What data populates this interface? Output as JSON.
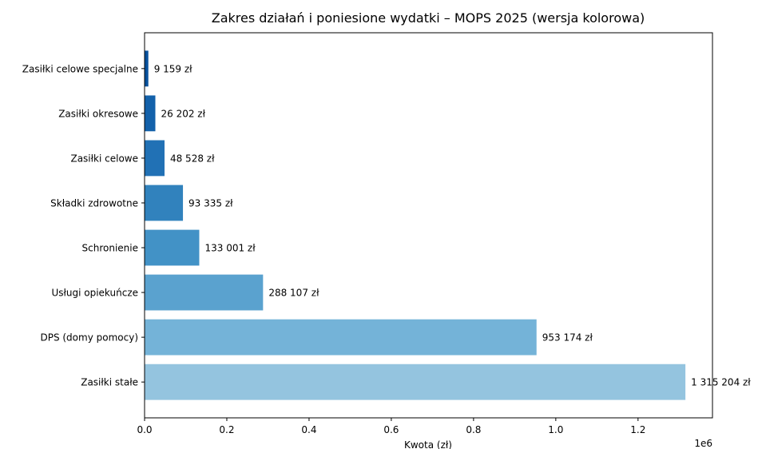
{
  "chart_data": {
    "type": "bar",
    "orientation": "horizontal",
    "title": "Zakres działań i poniesione wydatki – MOPS 2025 (wersja kolorowa)",
    "xlabel": "Kwota (zł)",
    "ylabel": "",
    "x_offset_text": "1e6",
    "xlim": [
      0,
      1381000
    ],
    "xticks": [
      0,
      200000,
      400000,
      600000,
      800000,
      1000000,
      1200000
    ],
    "xtick_labels": [
      "0.0",
      "0.2",
      "0.4",
      "0.6",
      "0.8",
      "1.0",
      "1.2"
    ],
    "grid": false,
    "categories": [
      "Zasiłki celowe specjalne",
      "Zasiłki okresowe",
      "Zasiłki celowe",
      "Składki zdrowotne",
      "Schronienie",
      "Usługi opiekuńcze",
      "DPS (domy pomocy)",
      "Zasiłki stałe"
    ],
    "values": [
      9159,
      26202,
      48528,
      93335,
      133001,
      288107,
      953174,
      1315204
    ],
    "value_labels": [
      "9 159 zł",
      "26 202 zł",
      "48 528 zł",
      "93 335 zł",
      "133 001 zł",
      "288 107 zł",
      "953 174 zł",
      "1 315 204 zł"
    ],
    "colors": [
      "#08519c",
      "#1361aa",
      "#2171b5",
      "#3182bd",
      "#4292c6",
      "#5aa2cf",
      "#74b3d8",
      "#94c4df"
    ]
  }
}
